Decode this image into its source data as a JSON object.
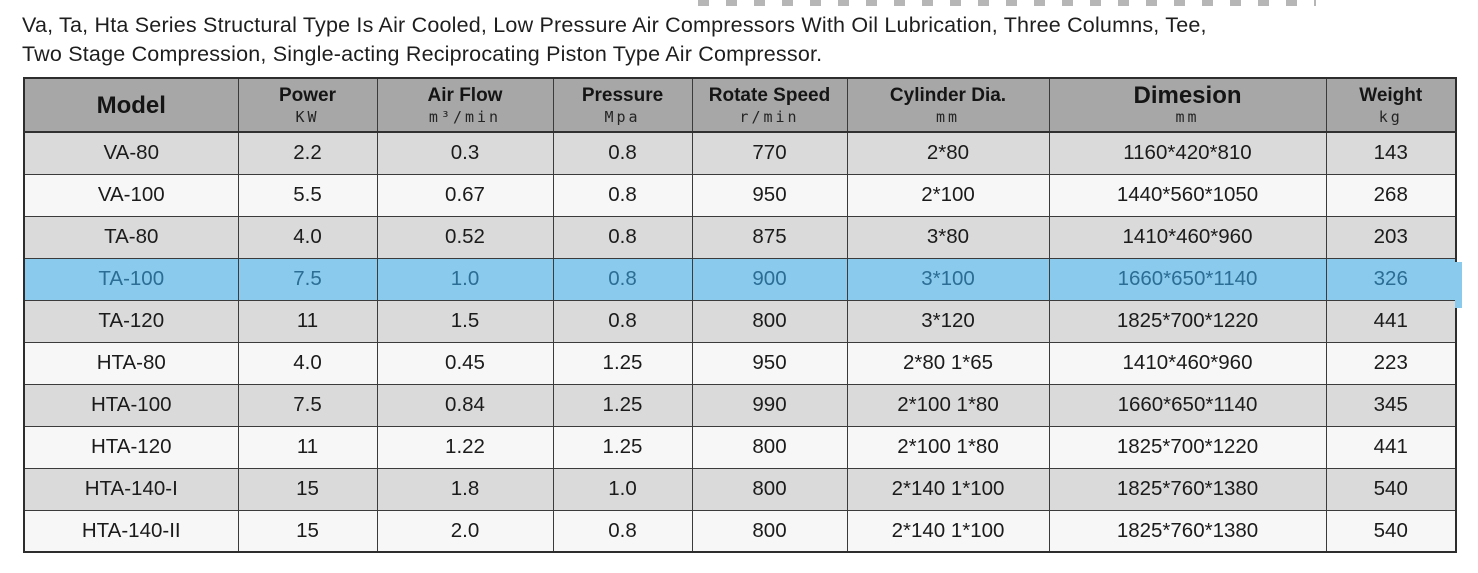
{
  "intro": {
    "line1": "Va, Ta, Hta Series Structural Type Is Air Cooled, Low Pressure Air Compressors With Oil Lubrication, Three Columns, Tee,",
    "line2": "Two Stage Compression, Single-acting Reciprocating Piston Type Air Compressor."
  },
  "table": {
    "columns": [
      {
        "key": "model",
        "label": "Model",
        "unit": ""
      },
      {
        "key": "power",
        "label": "Power",
        "unit": "KW"
      },
      {
        "key": "air_flow",
        "label": "Air Flow",
        "unit": "m³/min"
      },
      {
        "key": "pressure",
        "label": "Pressure",
        "unit": "Mpa"
      },
      {
        "key": "rotate_speed",
        "label": "Rotate Speed",
        "unit": "r/min"
      },
      {
        "key": "cylinder_dia",
        "label": "Cylinder Dia.",
        "unit": "mm"
      },
      {
        "key": "dimension",
        "label": "Dimesion",
        "unit": "mm"
      },
      {
        "key": "weight",
        "label": "Weight",
        "unit": "kg"
      }
    ],
    "rows": [
      {
        "model": "VA-80",
        "power": "2.2",
        "air_flow": "0.3",
        "pressure": "0.8",
        "rotate_speed": "770",
        "cylinder_dia": "2*80",
        "dimension": "1160*420*810",
        "weight": "143",
        "highlighted": false
      },
      {
        "model": "VA-100",
        "power": "5.5",
        "air_flow": "0.67",
        "pressure": "0.8",
        "rotate_speed": "950",
        "cylinder_dia": "2*100",
        "dimension": "1440*560*1050",
        "weight": "268",
        "highlighted": false
      },
      {
        "model": "TA-80",
        "power": "4.0",
        "air_flow": "0.52",
        "pressure": "0.8",
        "rotate_speed": "875",
        "cylinder_dia": "3*80",
        "dimension": "1410*460*960",
        "weight": "203",
        "highlighted": false
      },
      {
        "model": "TA-100",
        "power": "7.5",
        "air_flow": "1.0",
        "pressure": "0.8",
        "rotate_speed": "900",
        "cylinder_dia": "3*100",
        "dimension": "1660*650*1140",
        "weight": "326",
        "highlighted": true
      },
      {
        "model": "TA-120",
        "power": "11",
        "air_flow": "1.5",
        "pressure": "0.8",
        "rotate_speed": "800",
        "cylinder_dia": "3*120",
        "dimension": "1825*700*1220",
        "weight": "441",
        "highlighted": false
      },
      {
        "model": "HTA-80",
        "power": "4.0",
        "air_flow": "0.45",
        "pressure": "1.25",
        "rotate_speed": "950",
        "cylinder_dia": "2*80 1*65",
        "dimension": "1410*460*960",
        "weight": "223",
        "highlighted": false
      },
      {
        "model": "HTA-100",
        "power": "7.5",
        "air_flow": "0.84",
        "pressure": "1.25",
        "rotate_speed": "990",
        "cylinder_dia": "2*100 1*80",
        "dimension": "1660*650*1140",
        "weight": "345",
        "highlighted": false
      },
      {
        "model": "HTA-120",
        "power": "11",
        "air_flow": "1.22",
        "pressure": "1.25",
        "rotate_speed": "800",
        "cylinder_dia": "2*100 1*80",
        "dimension": "1825*700*1220",
        "weight": "441",
        "highlighted": false
      },
      {
        "model": "HTA-140-I",
        "power": "15",
        "air_flow": "1.8",
        "pressure": "1.0",
        "rotate_speed": "800",
        "cylinder_dia": "2*140 1*100",
        "dimension": "1825*760*1380",
        "weight": "540",
        "highlighted": false
      },
      {
        "model": "HTA-140-II",
        "power": "15",
        "air_flow": "2.0",
        "pressure": "0.8",
        "rotate_speed": "800",
        "cylinder_dia": "2*140 1*100",
        "dimension": "1825*760*1380",
        "weight": "540",
        "highlighted": false
      }
    ],
    "colors": {
      "header_bg": "#a7a7a7",
      "stripe_gray": "#dadada",
      "stripe_white": "#f7f7f7",
      "highlight_bg": "#8acaed",
      "highlight_text": "#2b6d94"
    }
  }
}
